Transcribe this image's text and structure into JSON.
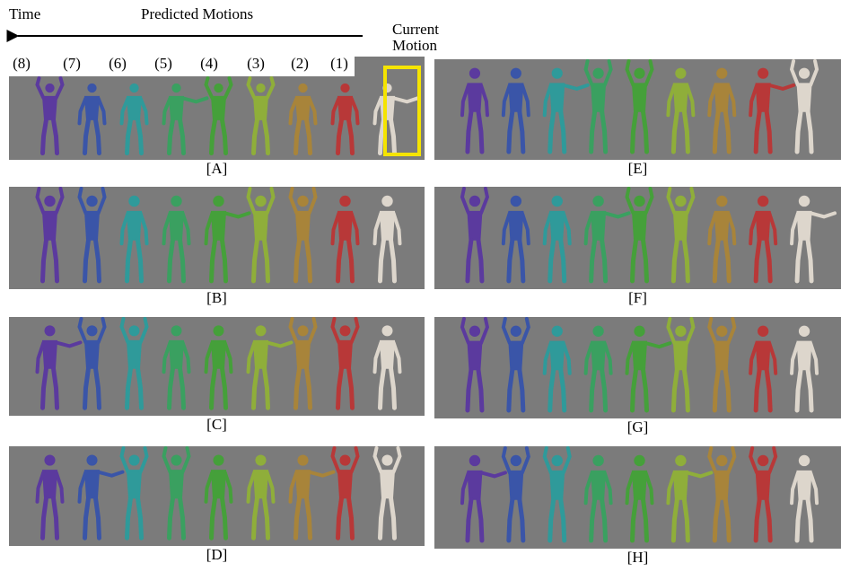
{
  "header": {
    "time": "Time",
    "predicted_motions": "Predicted Motions",
    "current_motion": [
      "Current",
      "Motion"
    ],
    "steps": [
      "(8)",
      "(7)",
      "(6)",
      "(5)",
      "(4)",
      "(3)",
      "(2)",
      "(1)"
    ]
  },
  "panels": [
    "[A]",
    "[B]",
    "[C]",
    "[D]",
    "[E]",
    "[F]",
    "[G]",
    "[H]"
  ]
}
